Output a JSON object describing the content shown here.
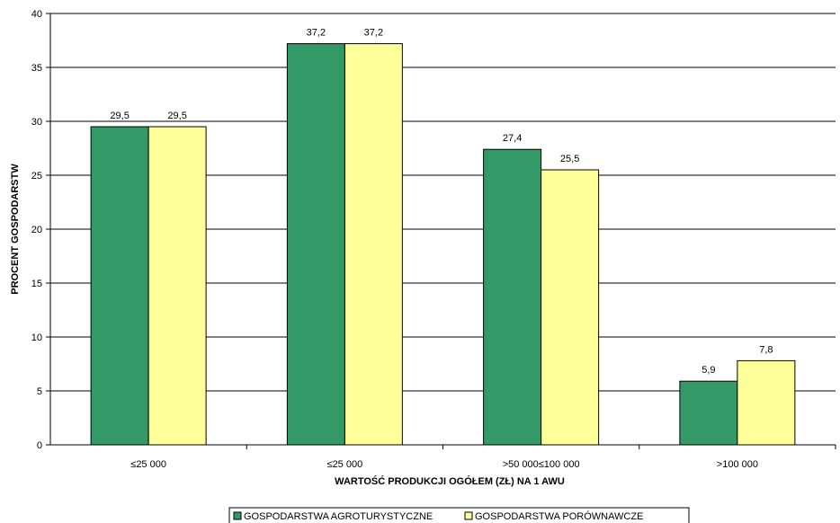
{
  "chart_data": {
    "type": "bar",
    "categories": [
      "≤25 000",
      "≤25 000",
      ">50 000≤100 000",
      ">100 000"
    ],
    "series": [
      {
        "name": "GOSPODARSTWA AGROTURYSTYCZNE",
        "values": [
          29.5,
          37.2,
          27.4,
          5.9
        ],
        "value_labels": [
          "29,5",
          "37,2",
          "27,4",
          "5,9"
        ],
        "color": "#339966"
      },
      {
        "name": "GOSPODARSTWA PORÓWNAWCZE",
        "values": [
          29.5,
          37.2,
          25.5,
          7.8
        ],
        "value_labels": [
          "29,5",
          "37,2",
          "25,5",
          "7,8"
        ],
        "color": "#FFFF99"
      }
    ],
    "title": "",
    "xlabel": "WARTOŚĆ PRODUKCJI OGÓŁEM (ZŁ) NA 1 AWU",
    "ylabel": "PROCENT GOSPODARSTW",
    "ylim": [
      0,
      40
    ],
    "yticks": [
      0,
      5,
      10,
      15,
      20,
      25,
      30,
      35,
      40
    ],
    "grid": true,
    "legend_position": "bottom"
  }
}
